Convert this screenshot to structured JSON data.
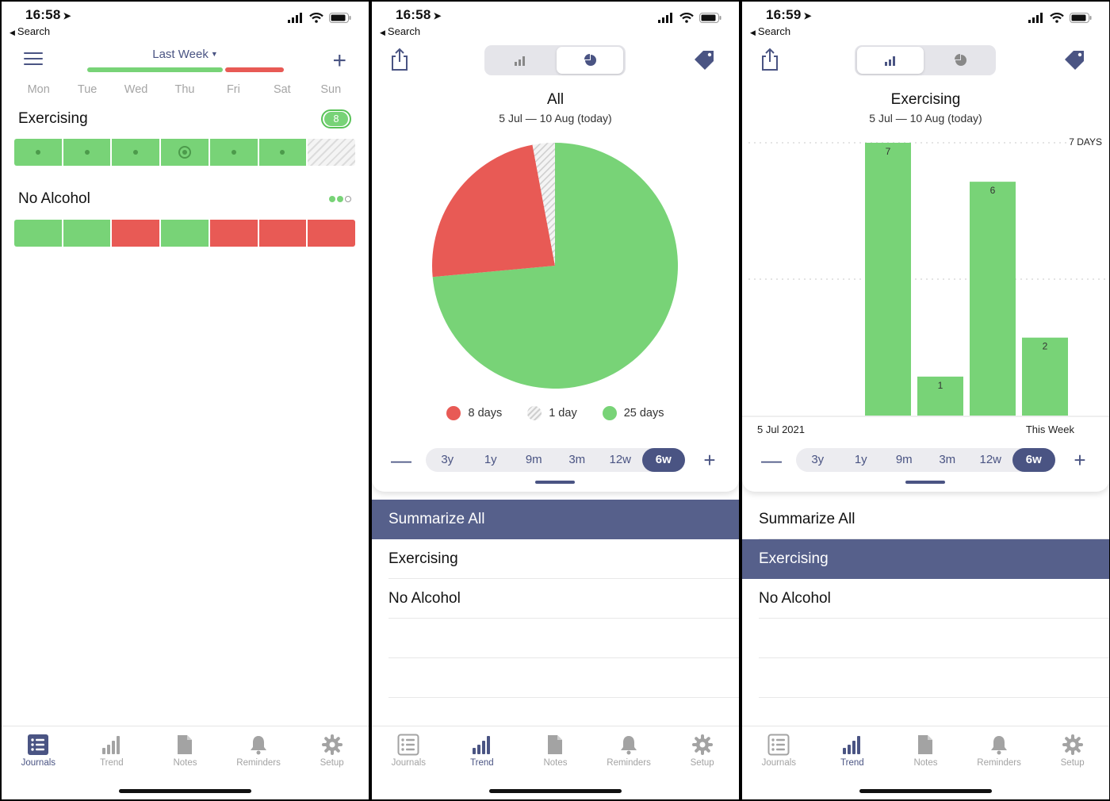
{
  "status_bars": [
    {
      "time": "16:58",
      "back": "Search"
    },
    {
      "time": "16:58",
      "back": "Search"
    },
    {
      "time": "16:59",
      "back": "Search"
    }
  ],
  "journals_screen": {
    "period": "Last Week",
    "week_bar": {
      "green_fraction": 0.7,
      "red_fraction": 0.3
    },
    "days": [
      "Mon",
      "Tue",
      "Wed",
      "Thu",
      "Fri",
      "Sat",
      "Sun"
    ],
    "journals": [
      {
        "name": "Exercising",
        "badge": "8",
        "cells": [
          "green-dot",
          "green-dot",
          "green-dot",
          "green-ring",
          "green-dot",
          "green-dot",
          "empty"
        ]
      },
      {
        "name": "No Alcohol",
        "cells": [
          "green",
          "green",
          "red",
          "green",
          "red",
          "red",
          "red"
        ]
      }
    ]
  },
  "trend_pie": {
    "title": "All",
    "range": "5 Jul — 10 Aug (today)",
    "legend": [
      {
        "label": "8 days",
        "color": "#e85a55"
      },
      {
        "label": "1 day",
        "color": "#dedede"
      },
      {
        "label": "25 days",
        "color": "#78d377"
      }
    ]
  },
  "trend_bar": {
    "title": "Exercising",
    "range": "5 Jul — 10 Aug (today)",
    "ref_label": "7 DAYS",
    "x_start": "5 Jul 2021",
    "x_end": "This Week"
  },
  "chart_data": [
    {
      "type": "pie",
      "title": "All",
      "subtitle": "5 Jul — 10 Aug (today)",
      "slices": [
        {
          "label": "8 days",
          "value": 8,
          "color": "#e85a55"
        },
        {
          "label": "1 day",
          "value": 1,
          "color": "#dedede"
        },
        {
          "label": "25 days",
          "value": 25,
          "color": "#78d377"
        }
      ]
    },
    {
      "type": "bar",
      "title": "Exercising",
      "subtitle": "5 Jul — 10 Aug (today)",
      "categories": [
        "5 Jul 2021",
        "",
        "",
        "",
        "",
        "This Week"
      ],
      "values": [
        0,
        0,
        7,
        1,
        6,
        2
      ],
      "ylim": [
        0,
        7
      ],
      "reference_line": "7 DAYS",
      "grid": true
    }
  ],
  "range_options": [
    "3y",
    "1y",
    "9m",
    "3m",
    "12w",
    "6w"
  ],
  "range_active": "6w",
  "list_items": [
    "Summarize All",
    "Exercising",
    "No Alcohol"
  ],
  "tabs": [
    "Journals",
    "Trend",
    "Notes",
    "Reminders",
    "Setup"
  ],
  "colors": {
    "accent": "#4a5483",
    "green": "#78d377",
    "red": "#e85a55",
    "selected_row": "#56608b"
  }
}
